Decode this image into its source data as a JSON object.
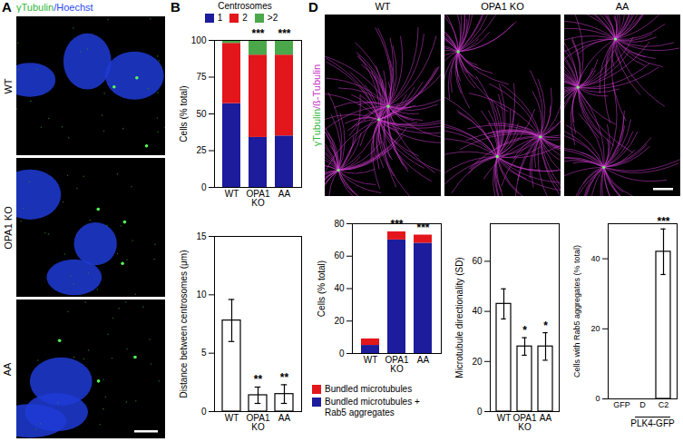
{
  "chart_data": [
    {
      "panel": "B",
      "type": "bar",
      "stacked": true,
      "categories": [
        "WT",
        "OPA1 KO",
        "AA"
      ],
      "series": [
        {
          "name": "1",
          "color": "#1c1c9c",
          "values": [
            57,
            34,
            35
          ]
        },
        {
          "name": "2",
          "color": "#e3161b",
          "values": [
            41,
            56,
            55
          ]
        },
        {
          "name": ">2",
          "color": "#4aa84a",
          "values": [
            2,
            10,
            10
          ]
        }
      ],
      "legend_title": "Centrosomes",
      "legend": "top",
      "ylabel": "Cells (% total)",
      "ylim": [
        0,
        100
      ],
      "yticks": [
        0,
        25,
        50,
        75,
        100
      ],
      "annotations": [
        null,
        "***",
        "***"
      ]
    },
    {
      "panel": "C",
      "type": "bar",
      "color": "#ffffff",
      "categories": [
        "WT",
        "OPA1 KO",
        "AA"
      ],
      "values": [
        7.8,
        1.4,
        1.5
      ],
      "errors": [
        1.8,
        0.7,
        0.8
      ],
      "ylabel": "Distance between centrosomes (μm)",
      "ylim": [
        0,
        15
      ],
      "yticks": [
        0,
        5,
        10,
        15
      ],
      "annotations": [
        null,
        "**",
        "**"
      ]
    },
    {
      "panel": "E",
      "type": "bar",
      "stacked": true,
      "categories": [
        "WT",
        "OPA1 KO",
        "AA"
      ],
      "series": [
        {
          "name": "Bundled microtubules + Rab5 aggregates",
          "color": "#1c1c9c",
          "values": [
            5,
            70,
            68
          ]
        },
        {
          "name": "Bundled microtubules",
          "color": "#e3161b",
          "values": [
            4,
            5,
            5
          ]
        }
      ],
      "legend": "bottom",
      "ylabel": "Cells (% total)",
      "ylim": [
        0,
        80
      ],
      "yticks": [
        0,
        20,
        40,
        60,
        80
      ],
      "annotations": [
        null,
        "***",
        "***"
      ]
    },
    {
      "panel": "F",
      "type": "bar",
      "color": "#ffffff",
      "categories": [
        "WT",
        "OPA1 KO",
        "AA"
      ],
      "values": [
        43,
        26,
        26
      ],
      "errors": [
        6,
        3.5,
        5.5
      ],
      "ylabel": "Microtubule directionality (SD)",
      "ylim": [
        0,
        75
      ],
      "yticks": [
        0,
        20,
        40,
        60
      ],
      "annotations": [
        null,
        "*",
        "*"
      ]
    },
    {
      "panel": "G",
      "type": "bar",
      "color": "#ffffff",
      "categories": [
        "GFP",
        "D",
        "C2"
      ],
      "values": [
        0,
        0,
        42
      ],
      "errors": [
        0,
        0,
        6.5
      ],
      "category_groups": [
        {
          "label": "PLK4-GFP",
          "categories": [
            "D",
            "C2"
          ]
        }
      ],
      "ylabel": "Cells with Rab5 aggregates (% total)",
      "ylim": [
        0,
        50
      ],
      "yticks": [
        0,
        20,
        40
      ],
      "annotations": [
        null,
        null,
        "***"
      ]
    }
  ],
  "image_panels": [
    {
      "panel": "A",
      "channel_label": [
        {
          "text": "γTubulin",
          "color": "#2fb83a"
        },
        {
          "text": "/Hoechst",
          "color": "#2c4cf0"
        }
      ],
      "rows": [
        "WT",
        "OPA1 KO",
        "AA"
      ]
    },
    {
      "panel": "D",
      "channel_label": [
        {
          "text": "γTubulin",
          "color": "#2fb83a"
        },
        {
          "text": "/ß-Tubulin",
          "color": "#c832c8"
        }
      ],
      "columns": [
        "WT",
        "OPA1 KO",
        "AA"
      ]
    }
  ]
}
